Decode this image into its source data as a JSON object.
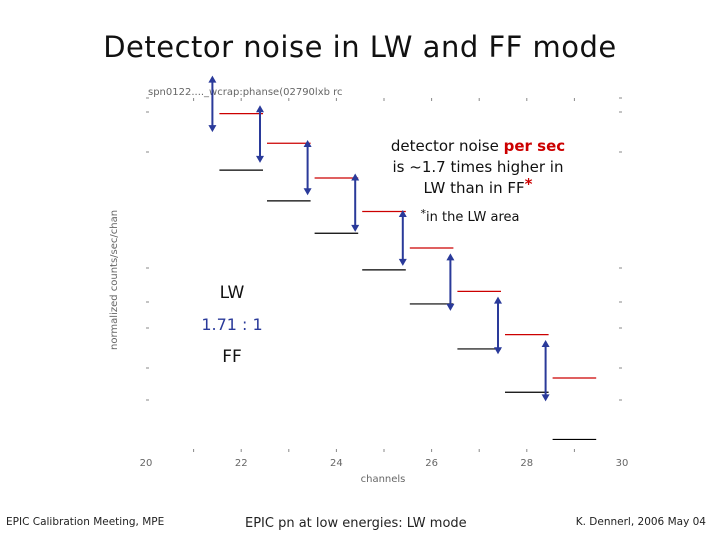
{
  "slide": {
    "title": "Detector noise in LW and FF mode",
    "footer_left": "EPIC Calibration Meeting, MPE",
    "footer_center": "EPIC pn at low energies: LW mode",
    "footer_right": "K. Dennerl, 2006 May 04"
  },
  "chart_data": {
    "type": "step",
    "title": "spn0122...._wcrap:phanse(02790lxb rc",
    "xlabel": "channels",
    "ylabel": "normalized counts/sec/chan",
    "xlim": [
      20,
      30
    ],
    "xticks": [
      "20",
      "22",
      "24",
      "26",
      "28",
      "30"
    ],
    "channels": [
      22,
      23,
      24,
      25,
      26,
      27,
      28,
      29
    ],
    "series": [
      {
        "name": "LW",
        "values": [
          0.95,
          0.72,
          0.52,
          0.38,
          0.27,
          0.18,
          0.12,
          0.08
        ]
      },
      {
        "name": "FF",
        "values": [
          0.56,
          0.42,
          0.31,
          0.22,
          0.16,
          0.105,
          0.07,
          0.045
        ]
      }
    ],
    "annotation": {
      "line1_prefix": "detector noise ",
      "line1_highlight": "per sec",
      "line2": "is ~1.7 times higher in",
      "line3": "LW than in FF",
      "star": "*",
      "footnote_star": "*",
      "footnote": "in the LW area"
    },
    "legend_lw": "LW",
    "ratio": "1.71 : 1",
    "legend_ff": "FF",
    "colors": {
      "lw": "#cc0000",
      "ff": "#000000",
      "arrow": "#2a3a9a",
      "highlight": "#cc0000"
    }
  }
}
